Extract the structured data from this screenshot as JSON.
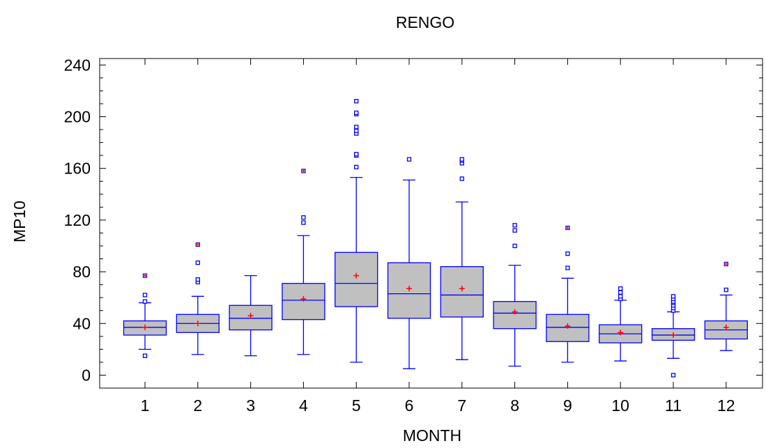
{
  "chart_data": {
    "type": "boxplot",
    "title": "RENGO",
    "xlabel": "MONTH",
    "ylabel": "MP10",
    "ylim": [
      -10,
      245
    ],
    "yticks": [
      0,
      40,
      80,
      120,
      160,
      200,
      240
    ],
    "categories": [
      "1",
      "2",
      "3",
      "4",
      "5",
      "6",
      "7",
      "8",
      "9",
      "10",
      "11",
      "12"
    ],
    "boxes": [
      {
        "min": 20,
        "q1": 31,
        "median": 37,
        "q3": 42,
        "max": 56,
        "mean": 37,
        "outliers": [
          15,
          57,
          62
        ],
        "far_outliers": [
          77
        ]
      },
      {
        "min": 16,
        "q1": 33,
        "median": 40,
        "q3": 47,
        "max": 61,
        "mean": 40,
        "outliers": [
          72,
          74,
          87
        ],
        "far_outliers": [
          101
        ]
      },
      {
        "min": 15,
        "q1": 35,
        "median": 44,
        "q3": 54,
        "max": 77,
        "mean": 46,
        "outliers": [],
        "far_outliers": []
      },
      {
        "min": 16,
        "q1": 43,
        "median": 58,
        "q3": 71,
        "max": 108,
        "mean": 59,
        "outliers": [
          118,
          122
        ],
        "far_outliers": [
          158
        ]
      },
      {
        "min": 10,
        "q1": 53,
        "median": 71,
        "q3": 95,
        "max": 153,
        "mean": 77,
        "outliers": [
          161,
          170,
          171,
          187,
          189,
          192,
          202,
          203,
          212
        ],
        "far_outliers": []
      },
      {
        "min": 5,
        "q1": 44,
        "median": 63,
        "q3": 87,
        "max": 151,
        "mean": 67,
        "outliers": [
          167
        ],
        "far_outliers": []
      },
      {
        "min": 12,
        "q1": 45,
        "median": 62,
        "q3": 84,
        "max": 134,
        "mean": 67,
        "outliers": [
          152,
          164,
          166,
          167
        ],
        "far_outliers": []
      },
      {
        "min": 7,
        "q1": 36,
        "median": 48,
        "q3": 57,
        "max": 85,
        "mean": 49,
        "outliers": [
          100,
          112,
          116
        ],
        "far_outliers": []
      },
      {
        "min": 10,
        "q1": 26,
        "median": 37,
        "q3": 47,
        "max": 75,
        "mean": 38,
        "outliers": [
          83,
          94
        ],
        "far_outliers": [
          114
        ]
      },
      {
        "min": 11,
        "q1": 25,
        "median": 32,
        "q3": 39,
        "max": 58,
        "mean": 33,
        "outliers": [
          59,
          61,
          64,
          67
        ],
        "far_outliers": []
      },
      {
        "min": 13,
        "q1": 27,
        "median": 31,
        "q3": 36,
        "max": 49,
        "mean": 31,
        "outliers": [
          0,
          50,
          52,
          54,
          56,
          57,
          59,
          61
        ],
        "far_outliers": []
      },
      {
        "min": 19,
        "q1": 28,
        "median": 35,
        "q3": 42,
        "max": 62,
        "mean": 37,
        "outliers": [
          66
        ],
        "far_outliers": [
          86
        ]
      }
    ],
    "colors": {
      "box_fill": "#c0c0c0",
      "box_stroke": "#0000ff",
      "mean_marker": "#ff0000",
      "outlier": "#0000ff",
      "axis": "#000000"
    },
    "grid": false
  }
}
